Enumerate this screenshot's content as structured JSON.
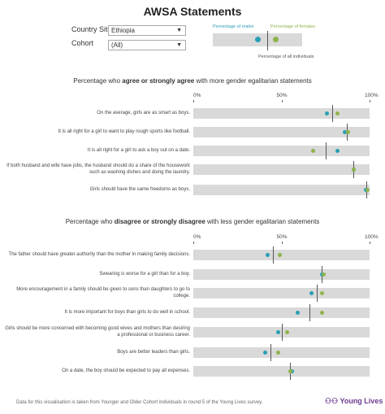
{
  "title": "AWSA Statements",
  "filters": {
    "country_label": "Country Site",
    "country_value": "Ethiopia",
    "cohort_label": "Cohort",
    "cohort_value": "(All)"
  },
  "legend": {
    "males": "Percentage of males",
    "females": "Percentage of females",
    "all": "Percentage of all individuals"
  },
  "colors": {
    "males": "#2a9fb5",
    "females": "#8fb34a",
    "all": "#555555",
    "bar": "#d9d9d9"
  },
  "axis_ticks": [
    "0%",
    "50%",
    "100%"
  ],
  "footer": "Data for this visualisation is taken from Younger and Older Cohort individuals in round 5 of the Young Lives survey.",
  "logo": "Young Lives",
  "chart_data": [
    {
      "type": "dot",
      "title_pre": "Percentage who ",
      "title_bold": "agree or strongly agree",
      "title_post": " with more gender egalitarian statements",
      "xlim": [
        0,
        100
      ],
      "rows": [
        {
          "label": "On the average, girls are as smart as boys.",
          "males": 76,
          "females": 82,
          "all": 79
        },
        {
          "label": "It is all right for a girl to want to play rough sports like football.",
          "males": 86,
          "females": 88,
          "all": 87
        },
        {
          "label": "It is all right for a girl to ask a boy out on a date.",
          "males": 82,
          "females": 68,
          "all": 75
        },
        {
          "label": "If both husband and wife have jobs, the husband should do a share of the housework such as washing dishes and doing the laundry.",
          "males": 91,
          "females": 91,
          "all": 91
        },
        {
          "label": "Girls should have the same freedoms as boys.",
          "males": 98,
          "females": 99,
          "all": 98
        }
      ]
    },
    {
      "type": "dot",
      "title_pre": "Percentage who ",
      "title_bold": "disagree or strongly disagree",
      "title_post": " with less gender egalitarian statements",
      "xlim": [
        0,
        100
      ],
      "rows": [
        {
          "label": "The father should have greater authority than the mother in making family decisions.",
          "males": 42,
          "females": 49,
          "all": 45
        },
        {
          "label": "Swearing is worse for a girl than for a boy.",
          "males": 73,
          "females": 74,
          "all": 73
        },
        {
          "label": "More encouragement in a family should be given to sons than daughters to go to college.",
          "males": 67,
          "females": 73,
          "all": 70
        },
        {
          "label": "It is more important for boys than girls to do well in school.",
          "males": 59,
          "females": 73,
          "all": 66
        },
        {
          "label": "Girls should be more concerned with becoming good wives and mothers than desiring a professional or business career.",
          "males": 48,
          "females": 53,
          "all": 50
        },
        {
          "label": "Boys are better leaders than girls.",
          "males": 41,
          "females": 48,
          "all": 44
        },
        {
          "label": "On a date, the boy should be expected to pay all expenses.",
          "males": 56,
          "females": 55,
          "all": 55
        }
      ]
    }
  ]
}
